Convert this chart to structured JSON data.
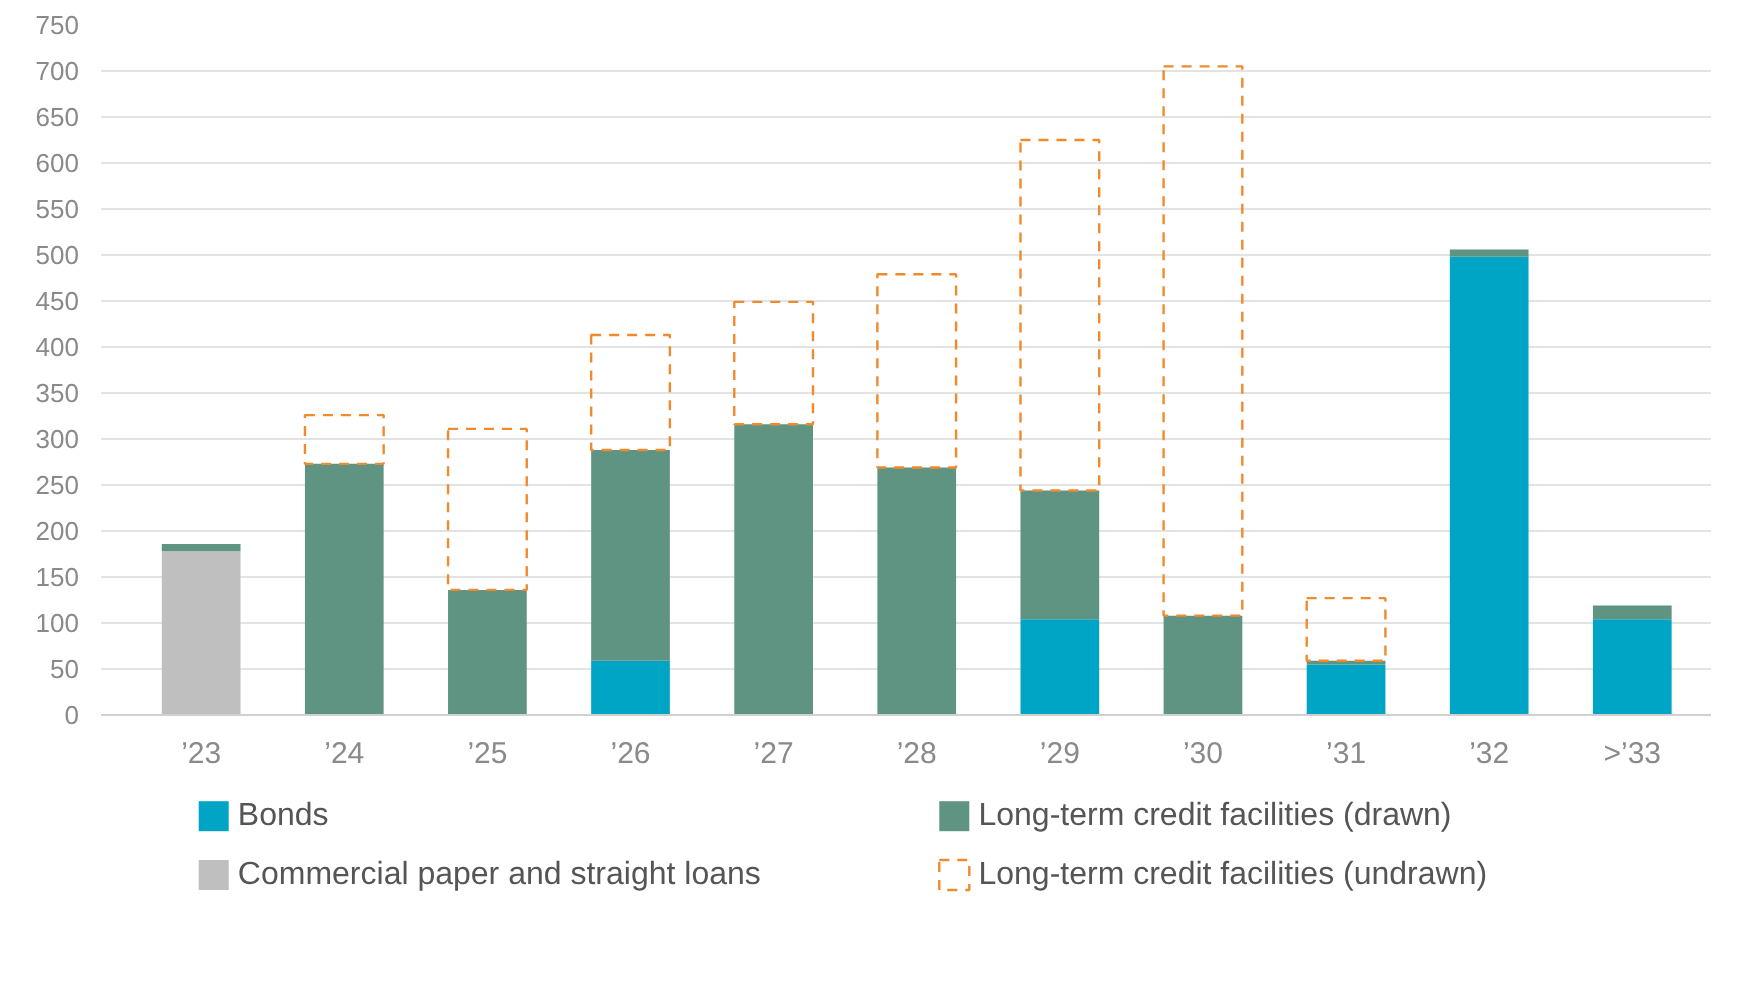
{
  "chart_data": {
    "type": "bar",
    "stacked": true,
    "categories": [
      "’23",
      "’24",
      "’25",
      "’26",
      "’27",
      "’28",
      "’29",
      "’30",
      "’31",
      "’32",
      ">’33"
    ],
    "series": [
      {
        "name": "Bonds",
        "color": "#00a5c6",
        "values": [
          null,
          null,
          null,
          59,
          null,
          null,
          104,
          null,
          55,
          498,
          104
        ]
      },
      {
        "name": "Commercial paper and straight loans",
        "color": "#c0bfbf",
        "values": [
          178,
          null,
          null,
          null,
          null,
          null,
          null,
          null,
          null,
          null,
          null
        ]
      },
      {
        "name": "Long-term credit facilities (drawn)",
        "color": "#5f9482",
        "values": [
          8,
          273,
          136,
          229,
          316,
          269,
          140,
          108,
          4,
          8,
          15
        ]
      },
      {
        "name": "Long-term credit facilities (undrawn)",
        "color": "#f08a2c",
        "line_style": "dashed",
        "values": [
          null,
          53,
          175,
          125,
          133,
          210,
          381,
          597,
          68,
          null,
          null
        ]
      }
    ],
    "ylim": [
      0,
      750
    ],
    "yticks": [
      0,
      50,
      100,
      150,
      200,
      250,
      300,
      350,
      400,
      450,
      500,
      550,
      600,
      650,
      700,
      750
    ],
    "grid": "y",
    "legend": "bottom"
  }
}
